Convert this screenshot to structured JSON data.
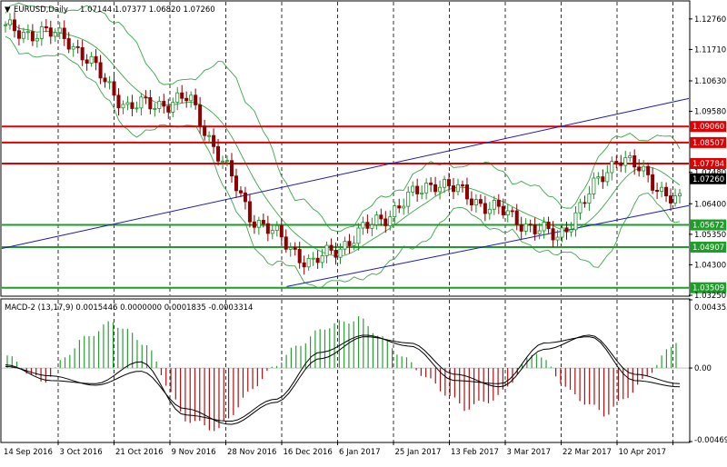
{
  "header": {
    "symbol": "EURUSD,Daily",
    "ohlc": "1.07144 1.07377 1.06820 1.07260"
  },
  "macd": {
    "label": "MACD-2 (13,17,9) 0.0015446 0.0000000 0.0001835 -0.0003314"
  },
  "chart_data": [
    {
      "type": "line",
      "title": "EURUSD,Daily",
      "subtitle": "1.07144 1.07377 1.06820 1.07260",
      "series_kind": "candlestick with Bollinger Bands",
      "x": [
        "14 Sep 2016",
        "3 Oct 2016",
        "21 Oct 2016",
        "9 Nov 2016",
        "28 Nov 2016",
        "16 Dec 2016",
        "6 Jan 2017",
        "25 Jan 2017",
        "13 Feb 2017",
        "3 Mar 2017",
        "22 Mar 2017",
        "10 Apr 2017"
      ],
      "close": [
        1.124,
        1.1215,
        1.097,
        1.1,
        1.06,
        1.043,
        1.057,
        1.072,
        1.062,
        1.052,
        1.081,
        1.064
      ],
      "y_ticks": [
        "1.12760",
        "1.11710",
        "1.10630",
        "1.09580",
        "1.07480",
        "1.06400",
        "1.05350",
        "1.04300",
        "1.03250"
      ],
      "ylim": [
        1.0325,
        1.1335
      ],
      "horizontal_levels": [
        {
          "value": "1.09060",
          "color": "#e00000"
        },
        {
          "value": "1.08507",
          "color": "#e00000"
        },
        {
          "value": "1.07784",
          "color": "#e00000"
        },
        {
          "value": "1.05672",
          "color": "#1e9e28"
        },
        {
          "value": "1.04907",
          "color": "#1e9e28"
        },
        {
          "value": "1.03509",
          "color": "#1e9e28"
        }
      ],
      "current_price": "1.07260",
      "channel_lines": [
        {
          "from": [
            "14 Sep 2016",
            1.049
          ],
          "to": [
            "10 Apr 2017",
            1.0955
          ]
        },
        {
          "from": [
            "16 Dec 2016",
            1.0355
          ],
          "to": [
            "10 Apr 2017",
            1.059
          ]
        }
      ],
      "colors": {
        "up": "#1f8f2a",
        "down": "#8b0000",
        "bands": "#3aa64a",
        "levels_red": "#e00000",
        "levels_green": "#1e9e28",
        "channel": "#1a1ab5"
      }
    },
    {
      "type": "bar",
      "title": "MACD-2 (13,17,9) 0.0015446 0.0000000 0.0001835 -0.0003314",
      "y_ticks": [
        "0.004355",
        "0.00",
        "-0.004696"
      ],
      "ylim": [
        -0.004696,
        0.004355
      ],
      "histogram": [
        0.0008,
        -0.001,
        0.0016,
        0.003,
        0.0014,
        -0.0032,
        -0.004,
        -0.0012,
        0.001,
        0.0026,
        0.0032,
        0.0012,
        -0.0008,
        -0.0026,
        -0.0018,
        0.0012,
        -0.0016,
        -0.003,
        -0.001,
        0.0018
      ],
      "macd_line": [
        0.0002,
        -0.0008,
        -0.001,
        0.0004,
        -0.003,
        -0.0034,
        -0.002,
        0.001,
        0.0021,
        0.0014,
        -0.0008,
        -0.001,
        0.0016,
        0.002,
        -0.0008,
        -0.0012
      ],
      "signal_line": [
        0.0001,
        -0.0005,
        -0.0011,
        -0.0002,
        -0.0026,
        -0.0036,
        -0.0022,
        0.0006,
        0.002,
        0.0016,
        -0.0004,
        -0.0012,
        0.0012,
        0.0021,
        -0.0004,
        -0.001
      ],
      "colors": {
        "up": "#2a9e35",
        "down": "#b01010",
        "line": "#000000"
      }
    }
  ]
}
